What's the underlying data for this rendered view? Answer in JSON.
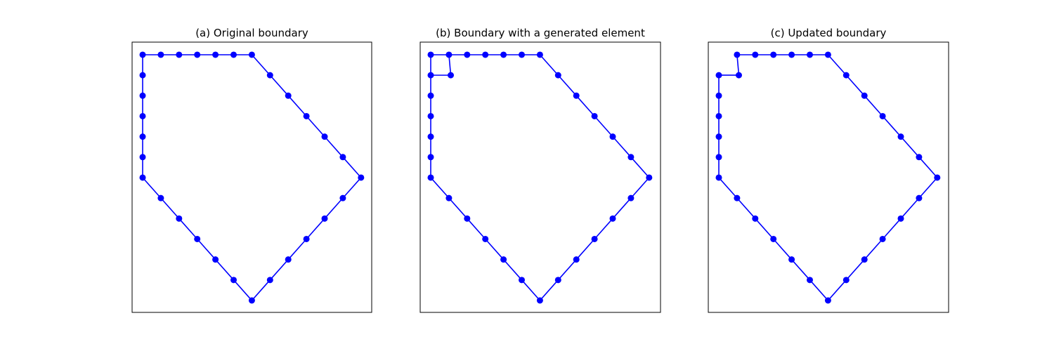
{
  "colors": {
    "line": "#0000ff",
    "marker": "#0000ff",
    "frame": "#000000",
    "background": "#ffffff"
  },
  "chart_data": [
    {
      "type": "line",
      "title": "(a) Original boundary",
      "grid": false,
      "axes_ticks": false,
      "points": [
        [
          0,
          12
        ],
        [
          1,
          12
        ],
        [
          2,
          12
        ],
        [
          3,
          12
        ],
        [
          4,
          12
        ],
        [
          5,
          12
        ],
        [
          6,
          12
        ],
        [
          7,
          11
        ],
        [
          8,
          10
        ],
        [
          9,
          9
        ],
        [
          10,
          8
        ],
        [
          11,
          7
        ],
        [
          12,
          6
        ],
        [
          11,
          5
        ],
        [
          10,
          4
        ],
        [
          9,
          3
        ],
        [
          8,
          2
        ],
        [
          7,
          1
        ],
        [
          6,
          0
        ],
        [
          5,
          1
        ],
        [
          4,
          2
        ],
        [
          3,
          3
        ],
        [
          2,
          4
        ],
        [
          1,
          5
        ],
        [
          0,
          6
        ],
        [
          0,
          7
        ],
        [
          0,
          8
        ],
        [
          0,
          9
        ],
        [
          0,
          10
        ],
        [
          0,
          11
        ],
        [
          0,
          12
        ]
      ],
      "extra_segments": []
    },
    {
      "type": "line",
      "title": "(b) Boundary with a generated element",
      "grid": false,
      "axes_ticks": false,
      "points": [
        [
          0,
          12
        ],
        [
          1,
          12
        ],
        [
          2,
          12
        ],
        [
          3,
          12
        ],
        [
          4,
          12
        ],
        [
          5,
          12
        ],
        [
          6,
          12
        ],
        [
          7,
          11
        ],
        [
          8,
          10
        ],
        [
          9,
          9
        ],
        [
          10,
          8
        ],
        [
          11,
          7
        ],
        [
          12,
          6
        ],
        [
          11,
          5
        ],
        [
          10,
          4
        ],
        [
          9,
          3
        ],
        [
          8,
          2
        ],
        [
          7,
          1
        ],
        [
          6,
          0
        ],
        [
          5,
          1
        ],
        [
          4,
          2
        ],
        [
          3,
          3
        ],
        [
          2,
          4
        ],
        [
          1,
          5
        ],
        [
          0,
          6
        ],
        [
          0,
          7
        ],
        [
          0,
          8
        ],
        [
          0,
          9
        ],
        [
          0,
          10
        ],
        [
          0,
          11
        ],
        [
          0,
          12
        ]
      ],
      "extra_segments": [
        [
          [
            0,
            11
          ],
          [
            1.1,
            11
          ]
        ],
        [
          [
            1.1,
            11
          ],
          [
            1,
            12
          ]
        ]
      ]
    },
    {
      "type": "line",
      "title": "(c) Updated boundary",
      "grid": false,
      "axes_ticks": false,
      "points": [
        [
          1,
          12
        ],
        [
          2,
          12
        ],
        [
          3,
          12
        ],
        [
          4,
          12
        ],
        [
          5,
          12
        ],
        [
          6,
          12
        ],
        [
          7,
          11
        ],
        [
          8,
          10
        ],
        [
          9,
          9
        ],
        [
          10,
          8
        ],
        [
          11,
          7
        ],
        [
          12,
          6
        ],
        [
          11,
          5
        ],
        [
          10,
          4
        ],
        [
          9,
          3
        ],
        [
          8,
          2
        ],
        [
          7,
          1
        ],
        [
          6,
          0
        ],
        [
          5,
          1
        ],
        [
          4,
          2
        ],
        [
          3,
          3
        ],
        [
          2,
          4
        ],
        [
          1,
          5
        ],
        [
          0,
          6
        ],
        [
          0,
          7
        ],
        [
          0,
          8
        ],
        [
          0,
          9
        ],
        [
          0,
          10
        ],
        [
          0,
          11
        ],
        [
          1.1,
          11
        ],
        [
          1,
          12
        ]
      ],
      "extra_segments": []
    }
  ]
}
